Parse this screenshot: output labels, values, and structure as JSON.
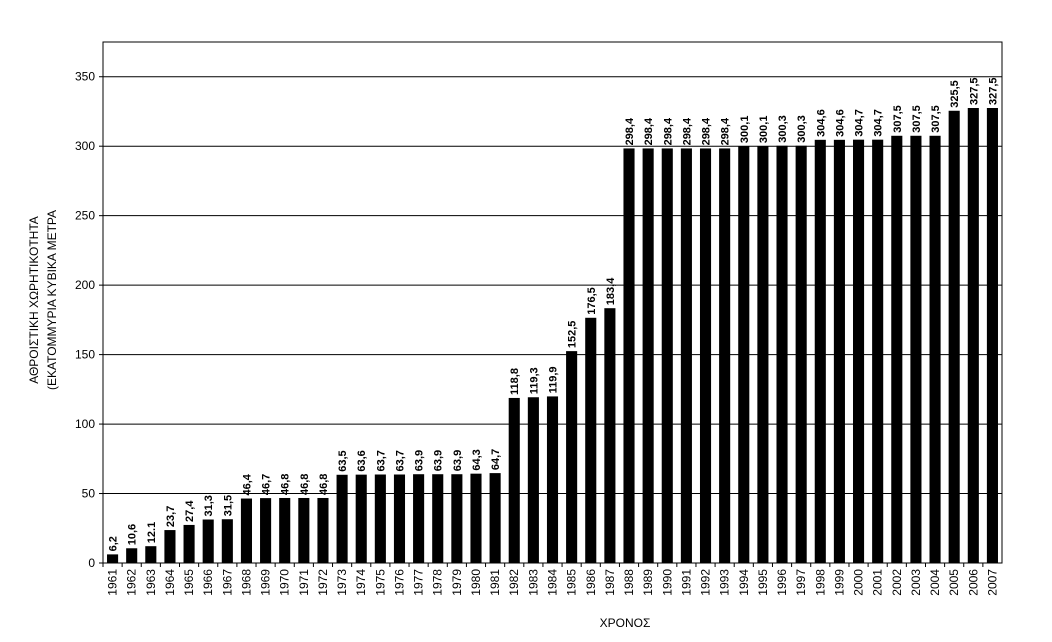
{
  "chart_data": {
    "type": "bar",
    "y_label_lines": [
      "ΑΘΡΟΙΣΤΙΚΗ ΧΩΡΗΤΙΚΟΤΗΤΑ",
      "(ΕΚΑΤΟΜΜΥΡΙΑ ΚΥΒΙΚΑ ΜΕΤΡΑ"
    ],
    "x_label": "ΧΡΟΝΟΣ",
    "categories": [
      "1961",
      "1962",
      "1963",
      "1964",
      "1965",
      "1966",
      "1967",
      "1968",
      "1969",
      "1970",
      "1971",
      "1972",
      "1973",
      "1974",
      "1975",
      "1976",
      "1977",
      "1978",
      "1979",
      "1980",
      "1981",
      "1982",
      "1983",
      "1984",
      "1985",
      "1986",
      "1987",
      "1988",
      "1989",
      "1990",
      "1991",
      "1992",
      "1993",
      "1994",
      "1995",
      "1996",
      "1997",
      "1998",
      "1999",
      "2000",
      "2001",
      "2002",
      "2003",
      "2004",
      "2005",
      "2006",
      "2007"
    ],
    "values": [
      6.2,
      10.6,
      12.1,
      23.7,
      27.4,
      31.3,
      31.5,
      46.4,
      46.7,
      46.8,
      46.8,
      46.8,
      63.5,
      63.6,
      63.7,
      63.7,
      63.9,
      63.9,
      63.9,
      64.3,
      64.7,
      118.8,
      119.3,
      119.9,
      152.5,
      176.5,
      183.4,
      298.4,
      298.4,
      298.4,
      298.4,
      298.4,
      298.4,
      300.1,
      300.1,
      300.3,
      300.3,
      304.6,
      304.6,
      304.7,
      304.7,
      307.5,
      307.5,
      307.5,
      325.5,
      327.5,
      327.5
    ],
    "value_labels": [
      "6,2",
      "10,6",
      "12.1",
      "23,7",
      "27,4",
      "31,3",
      "31,5",
      "46,4",
      "46,7",
      "46,8",
      "46,8",
      "46,8",
      "63,5",
      "63,6",
      "63,7",
      "63,7",
      "63,9",
      "63,9",
      "63,9",
      "64,3",
      "64,7",
      "118,8",
      "119,3",
      "119,9",
      "152,5",
      "176,5",
      "183,4",
      "298,4",
      "298,4",
      "298,4",
      "298,4",
      "298,4",
      "298,4",
      "300,1",
      "300,1",
      "300,3",
      "300,3",
      "304,6",
      "304,6",
      "304,7",
      "304,7",
      "307,5",
      "307,5",
      "307,5",
      "325,5",
      "327,5",
      "327,5"
    ],
    "color": "#000000",
    "ylim": [
      0,
      375
    ],
    "yticks": [
      0,
      50,
      100,
      150,
      200,
      250,
      300,
      350
    ],
    "grid": true
  }
}
